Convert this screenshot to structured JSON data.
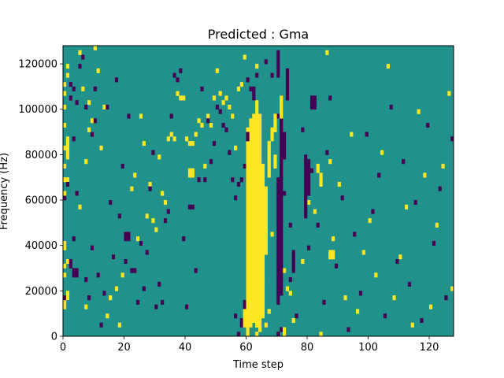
{
  "chart_data": {
    "type": "heatmap",
    "title": "Predicted : Gma",
    "xlabel": "Time step",
    "ylabel": "Frequency (Hz)",
    "xlim": [
      0,
      128
    ],
    "ylim": [
      0,
      128000
    ],
    "xticks": [
      0,
      20,
      40,
      60,
      80,
      100,
      120
    ],
    "yticks": [
      0,
      20000,
      40000,
      60000,
      80000,
      100000,
      120000
    ],
    "grid": false,
    "colormap": "viridis",
    "levels": [
      {
        "value": -1,
        "color": "#440154"
      },
      {
        "value": 0,
        "color": "#21918c"
      },
      {
        "value": 1,
        "color": "#fde725"
      }
    ],
    "background_value": 0,
    "rows": 64,
    "row_height_hz": 2000,
    "cells": [
      [
        0,
        6,
        1
      ],
      [
        0,
        7,
        1
      ],
      [
        0,
        8,
        -1
      ],
      [
        1,
        8,
        1
      ],
      [
        1,
        9,
        1
      ],
      [
        0,
        13,
        1
      ],
      [
        0,
        15,
        1
      ],
      [
        1,
        16,
        1
      ],
      [
        0,
        19,
        1
      ],
      [
        0,
        20,
        1
      ],
      [
        0,
        30,
        -1
      ],
      [
        0,
        31,
        1
      ],
      [
        0,
        34,
        1
      ],
      [
        1,
        34,
        1
      ],
      [
        1,
        33,
        -1
      ],
      [
        0,
        37,
        1
      ],
      [
        0,
        41,
        1
      ],
      [
        1,
        42,
        1
      ],
      [
        1,
        43,
        1
      ],
      [
        0,
        46,
        1
      ],
      [
        0,
        50,
        1
      ],
      [
        0,
        53,
        1
      ],
      [
        0,
        55,
        1
      ],
      [
        1,
        57,
        1
      ],
      [
        1,
        59,
        1
      ],
      [
        2,
        55,
        -1
      ],
      [
        2,
        52,
        -1
      ],
      [
        3,
        54,
        -1
      ],
      [
        4,
        31,
        -1
      ],
      [
        3,
        21,
        -1
      ],
      [
        3,
        43,
        -1
      ],
      [
        4,
        51,
        -1
      ],
      [
        5,
        59,
        -1
      ],
      [
        6,
        61,
        -1
      ],
      [
        7,
        50,
        -1
      ],
      [
        8,
        45,
        1
      ],
      [
        9,
        44,
        -1
      ],
      [
        10,
        54,
        -1
      ],
      [
        5,
        28,
        1
      ],
      [
        5,
        62,
        1
      ],
      [
        6,
        54,
        1
      ],
      [
        7,
        6,
        1
      ],
      [
        7,
        38,
        1
      ],
      [
        8,
        51,
        1
      ],
      [
        9,
        47,
        1
      ],
      [
        10,
        63,
        1
      ],
      [
        11,
        58,
        1
      ],
      [
        12,
        41,
        1
      ],
      [
        13,
        50,
        1
      ],
      [
        14,
        4,
        1
      ],
      [
        15,
        8,
        1
      ],
      [
        16,
        17,
        1
      ],
      [
        17,
        10,
        1
      ],
      [
        18,
        2,
        1
      ],
      [
        19,
        13,
        1
      ],
      [
        20,
        22,
        1
      ],
      [
        21,
        22,
        1
      ],
      [
        22,
        32,
        1
      ],
      [
        23,
        35,
        1
      ],
      [
        24,
        21,
        1
      ],
      [
        25,
        48,
        1
      ],
      [
        26,
        42,
        1
      ],
      [
        27,
        26,
        1
      ],
      [
        28,
        33,
        1
      ],
      [
        29,
        25,
        1
      ],
      [
        30,
        23,
        1
      ],
      [
        31,
        39,
        1
      ],
      [
        32,
        31,
        1
      ],
      [
        33,
        29,
        1
      ],
      [
        34,
        43,
        1
      ],
      [
        35,
        44,
        1
      ],
      [
        36,
        43,
        1
      ],
      [
        37,
        53,
        1
      ],
      [
        38,
        52,
        1
      ],
      [
        39,
        52,
        1
      ],
      [
        40,
        43,
        1
      ],
      [
        41,
        42,
        1
      ],
      [
        42,
        42,
        1
      ],
      [
        43,
        44,
        1
      ],
      [
        44,
        47,
        1
      ],
      [
        45,
        46,
        1
      ],
      [
        46,
        37,
        1
      ],
      [
        47,
        48,
        1
      ],
      [
        48,
        46,
        1
      ],
      [
        49,
        52,
        1
      ],
      [
        50,
        58,
        1
      ],
      [
        51,
        53,
        1
      ],
      [
        52,
        51,
        1
      ],
      [
        53,
        52,
        1
      ],
      [
        54,
        50,
        1
      ],
      [
        55,
        48,
        1
      ],
      [
        56,
        41,
        1
      ],
      [
        57,
        54,
        1
      ],
      [
        58,
        55,
        1
      ],
      [
        59,
        61,
        1
      ],
      [
        60,
        45,
        1
      ],
      [
        61,
        45,
        1
      ],
      [
        62,
        31,
        1
      ],
      [
        63,
        59,
        1
      ],
      [
        7,
        12,
        -1
      ],
      [
        8,
        8,
        -1
      ],
      [
        9,
        19,
        -1
      ],
      [
        10,
        47,
        -1
      ],
      [
        11,
        13,
        -1
      ],
      [
        12,
        2,
        -1
      ],
      [
        13,
        9,
        -1
      ],
      [
        14,
        50,
        -1
      ],
      [
        15,
        29,
        -1
      ],
      [
        16,
        17,
        -1
      ],
      [
        17,
        56,
        -1
      ],
      [
        18,
        26,
        -1
      ],
      [
        19,
        37,
        -1
      ],
      [
        20,
        16,
        -1
      ],
      [
        21,
        48,
        -1
      ],
      [
        22,
        14,
        -1
      ],
      [
        23,
        14,
        -1
      ],
      [
        24,
        7,
        -1
      ],
      [
        25,
        20,
        -1
      ],
      [
        26,
        10,
        -1
      ],
      [
        27,
        18,
        -1
      ],
      [
        28,
        32,
        -1
      ],
      [
        29,
        40,
        -1
      ],
      [
        30,
        6,
        -1
      ],
      [
        31,
        11,
        -1
      ],
      [
        32,
        7,
        -1
      ],
      [
        33,
        25,
        -1
      ],
      [
        34,
        27,
        -1
      ],
      [
        35,
        48,
        -1
      ],
      [
        36,
        57,
        -1
      ],
      [
        37,
        56,
        -1
      ],
      [
        38,
        58,
        -1
      ],
      [
        39,
        21,
        -1
      ],
      [
        40,
        6,
        -1
      ],
      [
        41,
        28,
        -1
      ],
      [
        42,
        28,
        -1
      ],
      [
        43,
        14,
        -1
      ],
      [
        44,
        34,
        -1
      ],
      [
        45,
        54,
        -1
      ],
      [
        46,
        34,
        -1
      ],
      [
        47,
        47,
        -1
      ],
      [
        48,
        38,
        -1
      ],
      [
        49,
        42,
        -1
      ],
      [
        50,
        50,
        -1
      ],
      [
        51,
        49,
        -1
      ],
      [
        52,
        46,
        -1
      ],
      [
        53,
        45,
        -1
      ],
      [
        54,
        40,
        -1
      ],
      [
        55,
        34,
        -1
      ],
      [
        56,
        30,
        -1
      ],
      [
        57,
        33,
        -1
      ],
      [
        58,
        34,
        -1
      ],
      [
        59,
        37,
        -1
      ],
      [
        60,
        56,
        -1
      ],
      [
        61,
        54,
        -1
      ],
      [
        62,
        38,
        -1
      ],
      [
        63,
        57,
        -1
      ],
      [
        66,
        2,
        1
      ],
      [
        67,
        5,
        1
      ],
      [
        65,
        12,
        1
      ],
      [
        68,
        22,
        1
      ],
      [
        72,
        14,
        1
      ],
      [
        74,
        9,
        1
      ],
      [
        75,
        3,
        1
      ],
      [
        78,
        16,
        1
      ],
      [
        80,
        29,
        1
      ],
      [
        82,
        27,
        1
      ],
      [
        84,
        0,
        1
      ],
      [
        86,
        62,
        1
      ],
      [
        87,
        38,
        1
      ],
      [
        88,
        21,
        1
      ],
      [
        90,
        33,
        1
      ],
      [
        92,
        8,
        1
      ],
      [
        94,
        44,
        1
      ],
      [
        96,
        5,
        1
      ],
      [
        98,
        18,
        1
      ],
      [
        100,
        25,
        1
      ],
      [
        102,
        13,
        1
      ],
      [
        104,
        40,
        1
      ],
      [
        106,
        59,
        1
      ],
      [
        108,
        8,
        1
      ],
      [
        110,
        17,
        1
      ],
      [
        112,
        28,
        1
      ],
      [
        114,
        2,
        1
      ],
      [
        116,
        49,
        1
      ],
      [
        118,
        35,
        1
      ],
      [
        120,
        6,
        1
      ],
      [
        122,
        24,
        1
      ],
      [
        124,
        37,
        1
      ],
      [
        126,
        53,
        1
      ],
      [
        127,
        10,
        1
      ],
      [
        66,
        60,
        -1
      ],
      [
        68,
        57,
        -1
      ],
      [
        70,
        48,
        -1
      ],
      [
        72,
        31,
        -1
      ],
      [
        74,
        12,
        -1
      ],
      [
        76,
        4,
        -1
      ],
      [
        78,
        45,
        -1
      ],
      [
        80,
        19,
        -1
      ],
      [
        81,
        36,
        -1
      ],
      [
        83,
        24,
        -1
      ],
      [
        85,
        7,
        -1
      ],
      [
        86,
        40,
        -1
      ],
      [
        87,
        52,
        -1
      ],
      [
        89,
        15,
        -1
      ],
      [
        91,
        30,
        -1
      ],
      [
        93,
        1,
        -1
      ],
      [
        95,
        22,
        -1
      ],
      [
        97,
        9,
        -1
      ],
      [
        99,
        44,
        -1
      ],
      [
        101,
        27,
        -1
      ],
      [
        103,
        35,
        -1
      ],
      [
        105,
        4,
        -1
      ],
      [
        107,
        50,
        -1
      ],
      [
        109,
        16,
        -1
      ],
      [
        111,
        38,
        -1
      ],
      [
        113,
        11,
        -1
      ],
      [
        115,
        29,
        -1
      ],
      [
        117,
        3,
        -1
      ],
      [
        119,
        46,
        -1
      ],
      [
        121,
        20,
        -1
      ],
      [
        123,
        32,
        -1
      ],
      [
        125,
        8,
        -1
      ],
      [
        127,
        43,
        -1
      ],
      [
        58,
        2,
        -1
      ],
      [
        58,
        3,
        -1
      ],
      [
        59,
        6,
        -1
      ],
      [
        59,
        7,
        -1
      ],
      [
        60,
        5,
        1
      ],
      [
        61,
        4,
        1
      ],
      [
        62,
        3,
        1
      ],
      [
        63,
        2,
        1
      ],
      [
        64,
        1,
        1
      ],
      [
        63,
        0,
        1
      ],
      [
        56,
        4,
        -1
      ],
      [
        57,
        0,
        -1
      ],
      [
        70,
        0,
        -1
      ],
      [
        71,
        1,
        -1
      ],
      [
        72,
        0,
        -1
      ],
      [
        73,
        10,
        1
      ],
      [
        74,
        24,
        -1
      ]
    ],
    "columns": [
      {
        "x": 59,
        "from": 4000,
        "to": 12000,
        "value": 1
      },
      {
        "x": 60,
        "from": 0,
        "to": 86000,
        "value": 1
      },
      {
        "x": 61,
        "from": 4000,
        "to": 96000,
        "value": 1
      },
      {
        "x": 62,
        "from": 8000,
        "to": 98000,
        "value": 1
      },
      {
        "x": 63,
        "from": 4000,
        "to": 104000,
        "value": 1
      },
      {
        "x": 64,
        "from": 2000,
        "to": 98000,
        "value": 1
      },
      {
        "x": 65,
        "from": 8000,
        "to": 76000,
        "value": 1
      },
      {
        "x": 66,
        "from": 36000,
        "to": 66000,
        "value": 1
      },
      {
        "x": 67,
        "from": 70000,
        "to": 86000,
        "value": 1
      },
      {
        "x": 68,
        "from": 86000,
        "to": 92000,
        "value": 1
      },
      {
        "x": 69,
        "from": 74000,
        "to": 80000,
        "value": 1
      },
      {
        "x": 70,
        "from": 14000,
        "to": 70000,
        "value": -1
      },
      {
        "x": 71,
        "from": 18000,
        "to": 96000,
        "value": -1
      },
      {
        "x": 72,
        "from": 78000,
        "to": 90000,
        "value": -1
      },
      {
        "x": 73,
        "from": 104000,
        "to": 118000,
        "value": -1
      },
      {
        "x": 62,
        "from": 104000,
        "to": 110000,
        "value": -1
      },
      {
        "x": 60,
        "from": 86000,
        "to": 90000,
        "value": -1
      },
      {
        "x": 71,
        "from": 96000,
        "to": 106000,
        "value": 1
      },
      {
        "x": 69,
        "from": 90000,
        "to": 98000,
        "value": 1
      },
      {
        "x": 72,
        "from": 0,
        "to": 4000,
        "value": 1
      },
      {
        "x": 70,
        "from": 114000,
        "to": 126000,
        "value": -1
      },
      {
        "x": 75,
        "from": 28000,
        "to": 38000,
        "value": -1
      },
      {
        "x": 79,
        "from": 52000,
        "to": 80000,
        "value": -1
      },
      {
        "x": 80,
        "from": 62000,
        "to": 78000,
        "value": -1
      },
      {
        "x": 83,
        "from": 72000,
        "to": 76000,
        "value": 1
      },
      {
        "x": 84,
        "from": 66000,
        "to": 72000,
        "value": 1
      },
      {
        "x": 87,
        "from": 34000,
        "to": 38000,
        "value": 1
      },
      {
        "x": 88,
        "from": 34000,
        "to": 38000,
        "value": 1
      },
      {
        "x": 81,
        "from": 100000,
        "to": 106000,
        "value": -1
      },
      {
        "x": 82,
        "from": 100000,
        "to": 106000,
        "value": -1
      },
      {
        "x": 1,
        "from": 78000,
        "to": 86000,
        "value": 1
      },
      {
        "x": 2,
        "from": 30000,
        "to": 34000,
        "value": -1
      },
      {
        "x": 3,
        "from": 26000,
        "to": 30000,
        "value": -1
      },
      {
        "x": 4,
        "from": 26000,
        "to": 30000,
        "value": -1
      },
      {
        "x": 41,
        "from": 70000,
        "to": 74000,
        "value": 1
      },
      {
        "x": 42,
        "from": 70000,
        "to": 74000,
        "value": 1
      },
      {
        "x": 20,
        "from": 42000,
        "to": 46000,
        "value": -1
      },
      {
        "x": 21,
        "from": 42000,
        "to": 46000,
        "value": -1
      }
    ]
  }
}
